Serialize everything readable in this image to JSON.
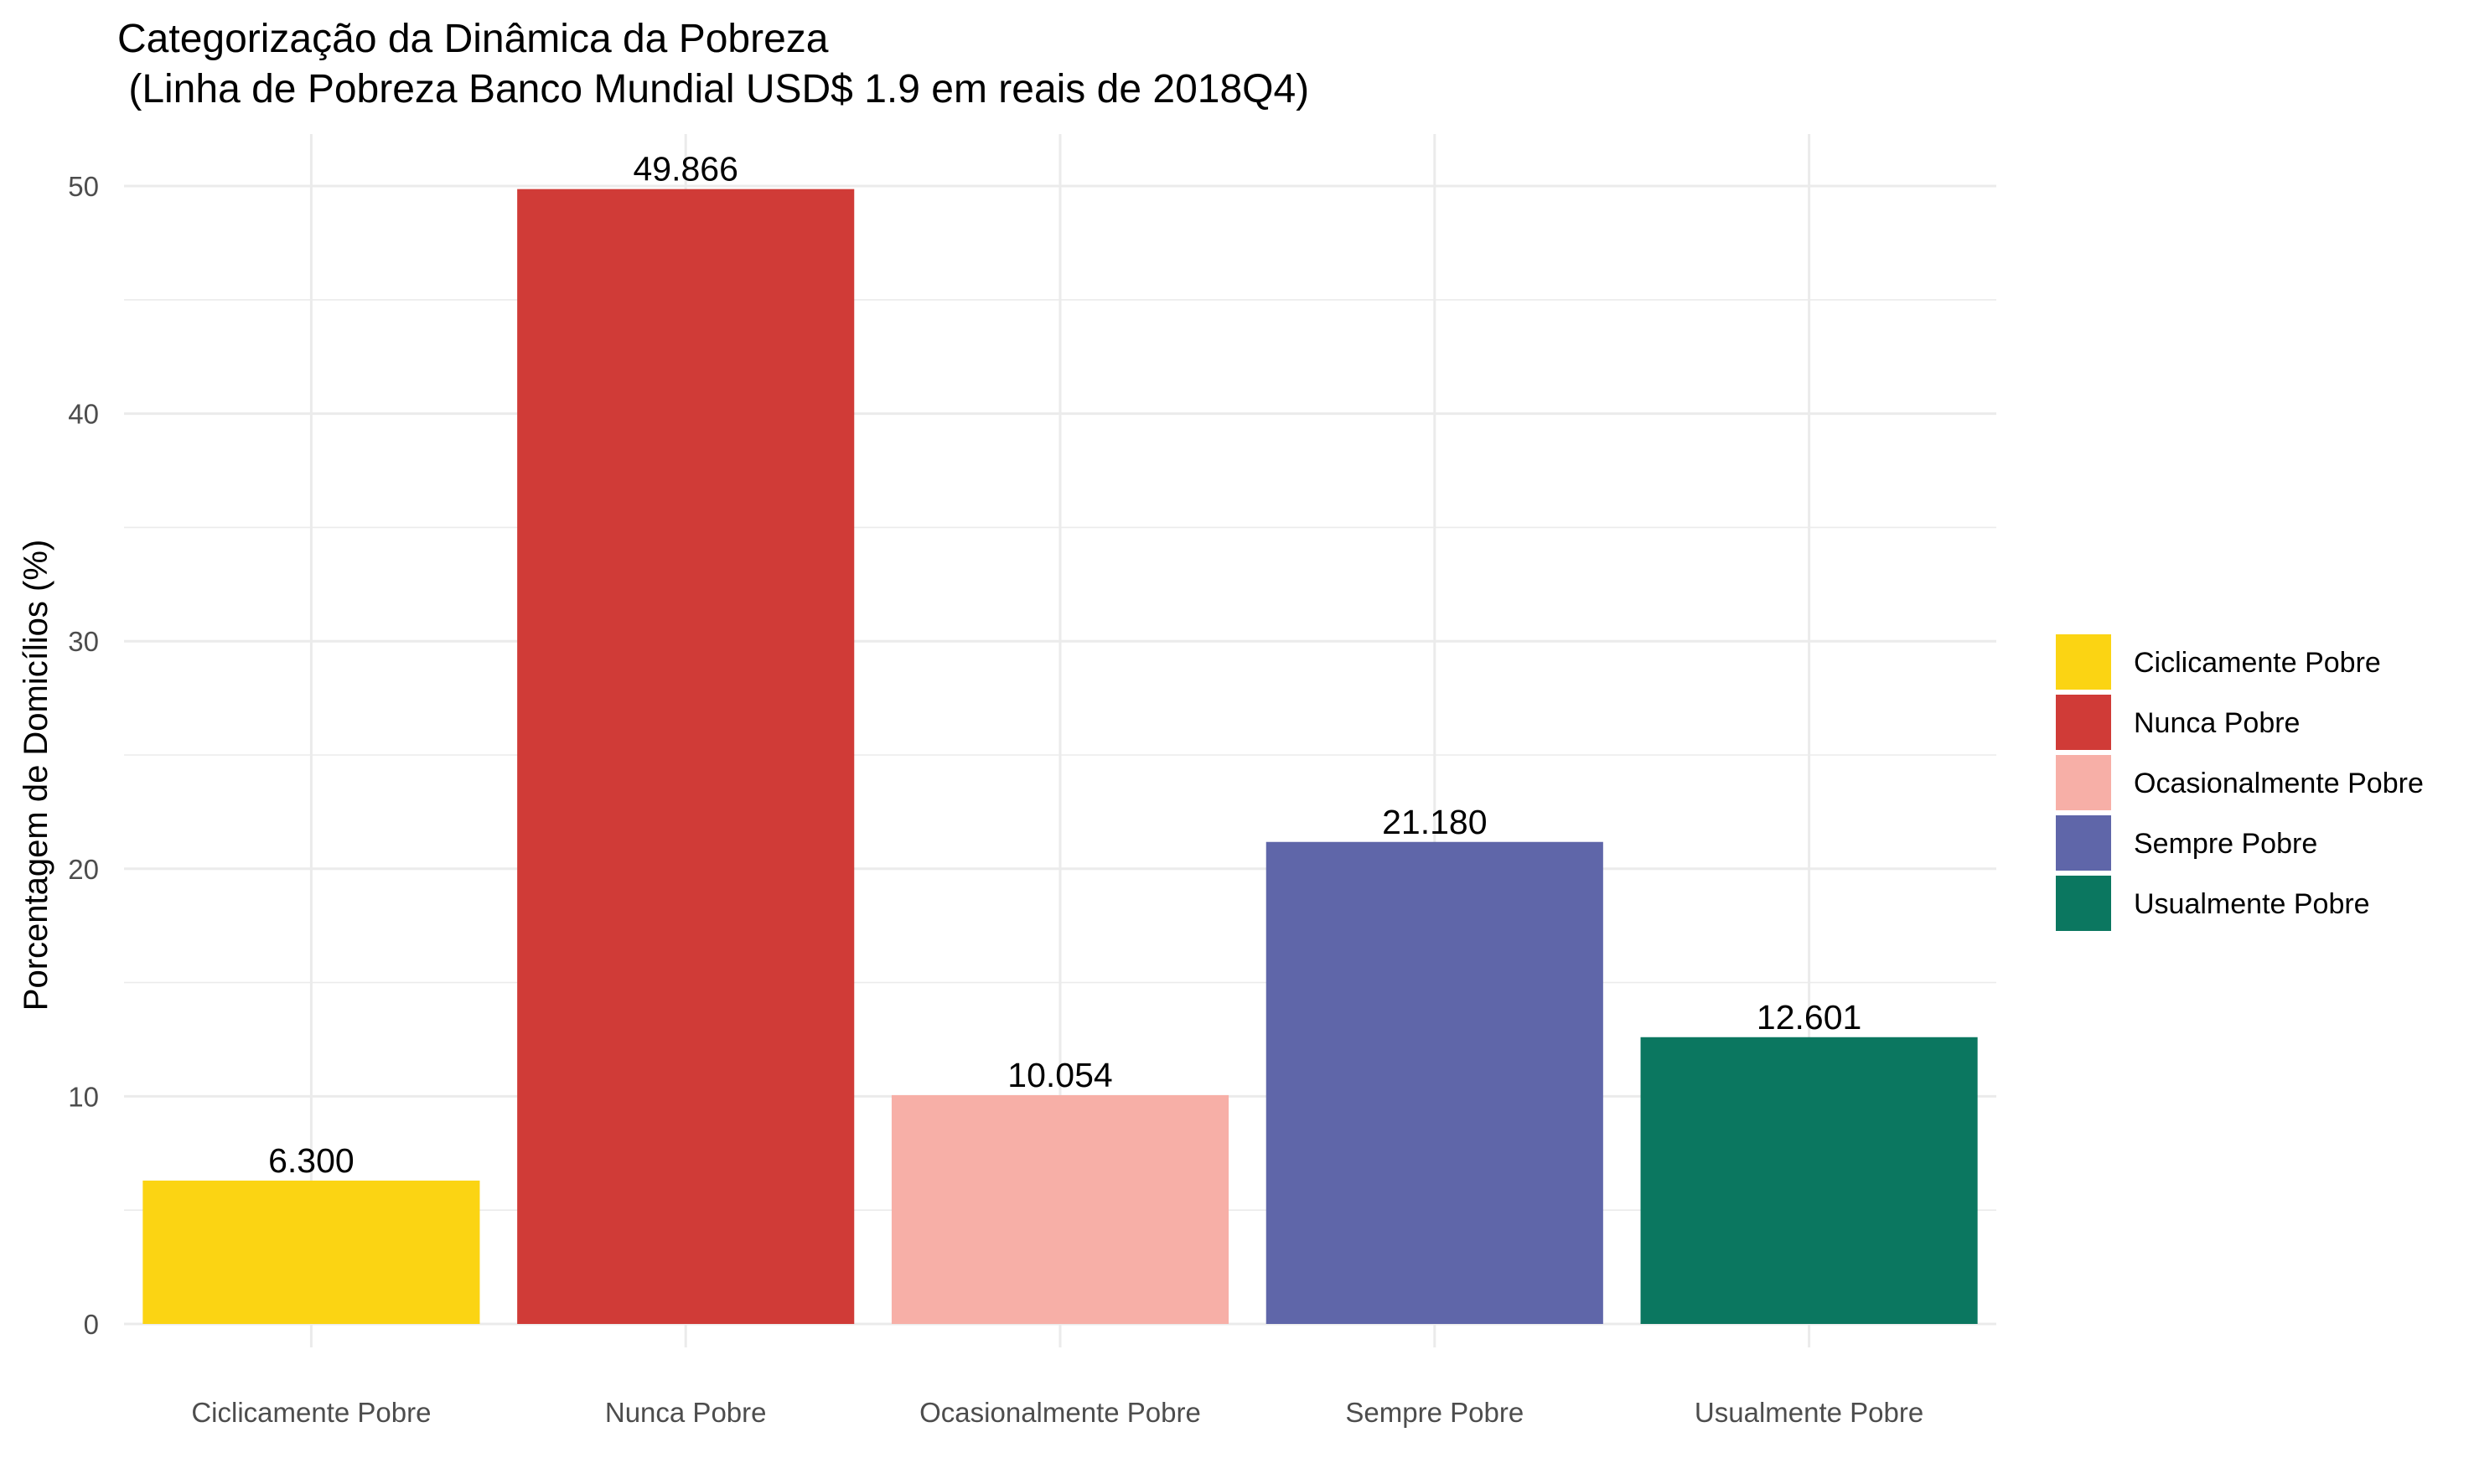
{
  "chart_data": {
    "type": "bar",
    "title": "Categorização da Dinâmica da Pobreza",
    "subtitle": " (Linha de Pobreza Banco Mundial USD$ 1.9 em reais de 2018Q4)",
    "xlabel": "",
    "ylabel": "Porcentagem de Domicílios (%)",
    "categories": [
      "Ciclicamente Pobre",
      "Nunca Pobre",
      "Ocasionalmente Pobre",
      "Sempre Pobre",
      "Usualmente Pobre"
    ],
    "values": [
      6.3,
      49.866,
      10.054,
      21.18,
      12.601
    ],
    "value_labels": [
      "6.300",
      "49.866",
      "10.054",
      "21.180",
      "12.601"
    ],
    "colors": [
      "#FBD413",
      "#D03B37",
      "#F7AFA7",
      "#5F66A9",
      "#0B7760"
    ],
    "ylim": [
      0,
      52
    ],
    "yticks": [
      0,
      10,
      20,
      30,
      40,
      50
    ],
    "grid": true,
    "legend": {
      "position": "right",
      "entries": [
        "Ciclicamente Pobre",
        "Nunca Pobre",
        "Ocasionalmente Pobre",
        "Sempre Pobre",
        "Usualmente Pobre"
      ]
    }
  }
}
